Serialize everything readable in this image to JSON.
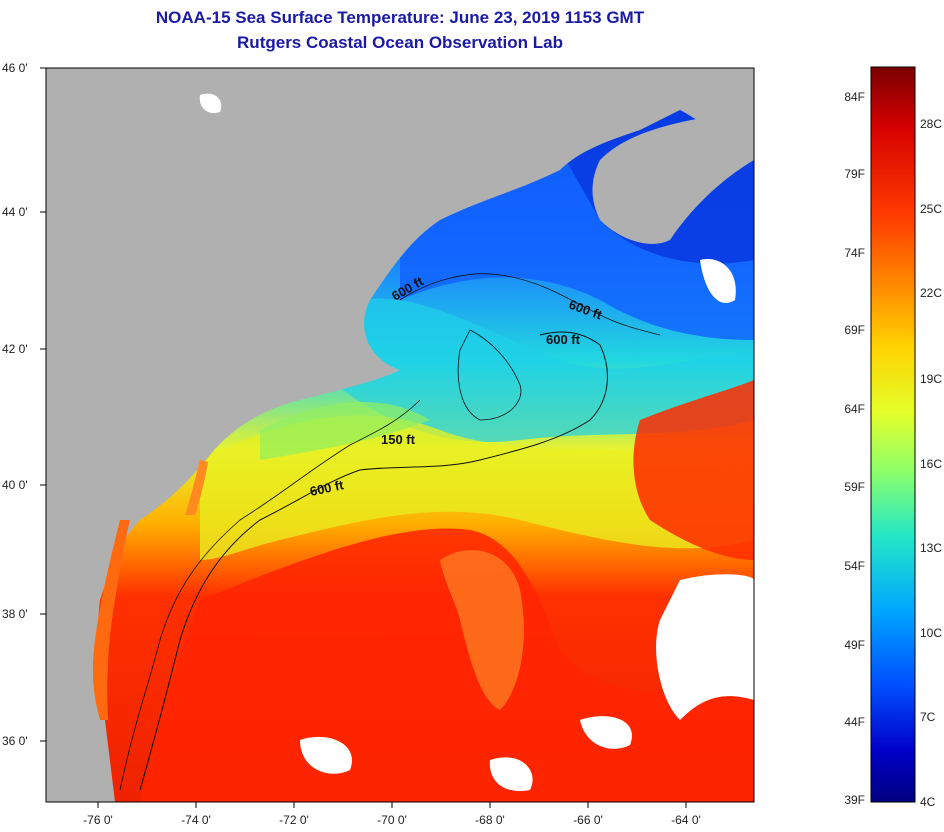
{
  "header": {
    "title": "NOAA-15 Sea Surface Temperature:  June 23, 2019 1153 GMT",
    "subtitle": "Rutgers Coastal Ocean Observation Lab"
  },
  "map": {
    "lon_labels": [
      "-76 0'",
      "-74 0'",
      "-72 0'",
      "-70 0'",
      "-68 0'",
      "-66 0'",
      "-64 0'"
    ],
    "lat_labels": [
      "46 0'",
      "44 0'",
      "42 0'",
      "40 0'",
      "38 0'",
      "36 0'"
    ],
    "contour_labels": [
      "600 ft",
      "600 ft",
      "600 ft",
      "150 ft",
      "600 ft"
    ],
    "colors": {
      "land": "#b0b0b0",
      "cloud": "#ffffff"
    }
  },
  "colorbar": {
    "fahrenheit": [
      "84F",
      "79F",
      "74F",
      "69F",
      "64F",
      "59F",
      "54F",
      "49F",
      "44F",
      "39F"
    ],
    "celsius": [
      "28C",
      "25C",
      "22C",
      "19C",
      "16C",
      "13C",
      "10C",
      "7C",
      "4C"
    ],
    "gradient": [
      "#7a0000",
      "#d40000",
      "#ff3a00",
      "#ff8c00",
      "#ffd200",
      "#e4ff2a",
      "#8dff6a",
      "#22e6c8",
      "#00a6ff",
      "#0050ff",
      "#0000c8",
      "#000080"
    ]
  }
}
